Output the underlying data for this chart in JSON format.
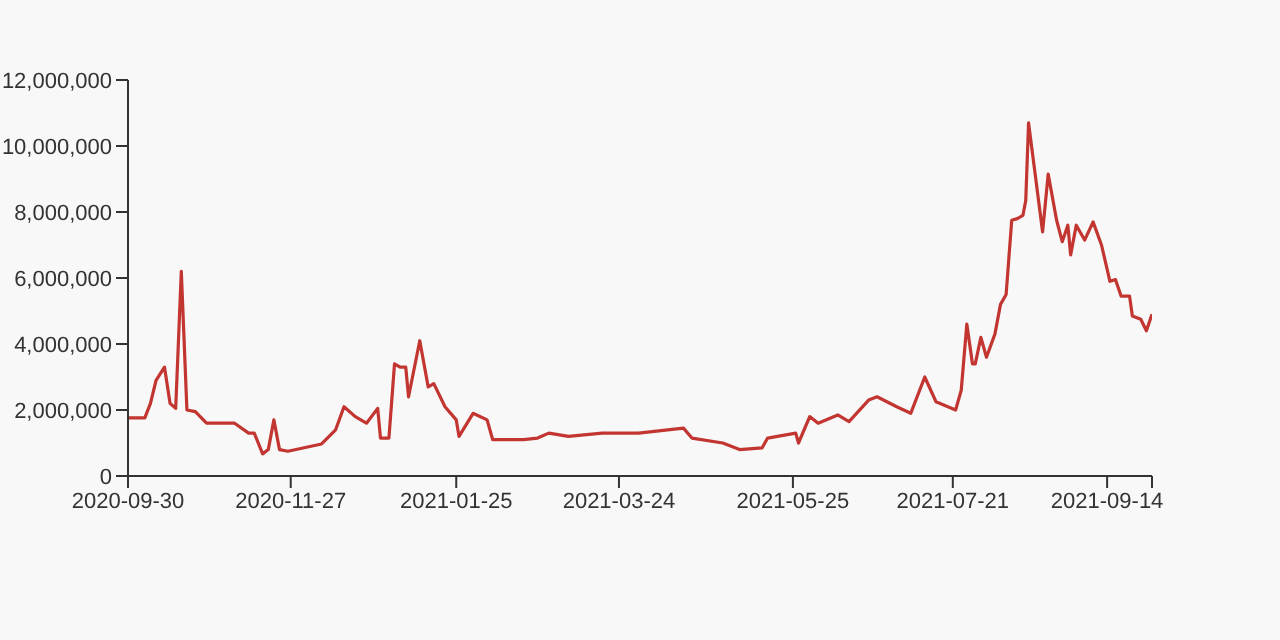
{
  "chart_data": {
    "type": "line",
    "marker": "none",
    "grid": false,
    "legend": false,
    "xlim": [
      "2020-09-30",
      "2021-09-30"
    ],
    "xticks": [
      "2020-09-30",
      "2020-11-27",
      "2021-01-25",
      "2021-03-24",
      "2021-05-25",
      "2021-07-21",
      "2021-09-14",
      {
        "value": "2021-09-30",
        "label": null
      }
    ],
    "ylim": [
      0,
      12000000
    ],
    "yticks": [
      0,
      {
        "value": 2000000,
        "label": "2,000,000"
      },
      {
        "value": 4000000,
        "label": "4,000,000"
      },
      {
        "value": 6000000,
        "label": "6,000,000"
      },
      {
        "value": 8000000,
        "label": "8,000,000"
      },
      {
        "value": 10000000,
        "label": "10,000,000"
      },
      {
        "value": 12000000,
        "label": "12,000,000"
      }
    ],
    "x": [
      "2020-09-30",
      "2020-10-06",
      "2020-10-08",
      "2020-10-10",
      "2020-10-13",
      "2020-10-15",
      "2020-10-17",
      "2020-10-19",
      "2020-10-21",
      "2020-10-24",
      "2020-10-28",
      "2020-11-07",
      "2020-11-12",
      "2020-11-14",
      "2020-11-17",
      "2020-11-19",
      "2020-11-21",
      "2020-11-23",
      "2020-11-26",
      "2020-12-08",
      "2020-12-13",
      "2020-12-16",
      "2020-12-20",
      "2020-12-24",
      "2020-12-28",
      "2020-12-29",
      "2021-01-01",
      "2021-01-03",
      "2021-01-05",
      "2021-01-07",
      "2021-01-08",
      "2021-01-12",
      "2021-01-15",
      "2021-01-17",
      "2021-01-21",
      "2021-01-25",
      "2021-01-26",
      "2021-01-31",
      "2021-02-05",
      "2021-02-07",
      "2021-02-18",
      "2021-02-23",
      "2021-02-27",
      "2021-03-06",
      "2021-03-18",
      "2021-03-31",
      "2021-04-16",
      "2021-04-19",
      "2021-04-30",
      "2021-05-06",
      "2021-05-14",
      "2021-05-16",
      "2021-05-26",
      "2021-05-27",
      "2021-05-31",
      "2021-06-03",
      "2021-06-10",
      "2021-06-14",
      "2021-06-21",
      "2021-06-24",
      "2021-07-01",
      "2021-07-06",
      "2021-07-11",
      "2021-07-15",
      "2021-07-22",
      "2021-07-24",
      "2021-07-26",
      "2021-07-28",
      "2021-07-29",
      "2021-07-31",
      "2021-08-02",
      "2021-08-05",
      "2021-08-07",
      "2021-08-09",
      "2021-08-11",
      "2021-08-13",
      "2021-08-15",
      "2021-08-16",
      "2021-08-17",
      "2021-08-22",
      "2021-08-24",
      "2021-08-27",
      "2021-08-29",
      "2021-08-31",
      "2021-09-01",
      "2021-09-03",
      "2021-09-06",
      "2021-09-09",
      "2021-09-12",
      "2021-09-15",
      "2021-09-17",
      "2021-09-19",
      "2021-09-22",
      "2021-09-23",
      "2021-09-26",
      "2021-09-28",
      "2021-09-30"
    ],
    "series": [
      {
        "color": "#c23531",
        "values": [
          1760000,
          1760000,
          2200000,
          2900000,
          3300000,
          2200000,
          2050000,
          6200000,
          2000000,
          1950000,
          1600000,
          1600000,
          1300000,
          1300000,
          670000,
          800000,
          1700000,
          800000,
          750000,
          970000,
          1400000,
          2100000,
          1800000,
          1600000,
          2050000,
          1150000,
          1150000,
          3400000,
          3300000,
          3300000,
          2400000,
          4100000,
          2700000,
          2800000,
          2100000,
          1700000,
          1200000,
          1900000,
          1700000,
          1100000,
          1100000,
          1150000,
          1300000,
          1200000,
          1300000,
          1300000,
          1450000,
          1150000,
          1000000,
          800000,
          850000,
          1150000,
          1300000,
          1000000,
          1800000,
          1600000,
          1850000,
          1650000,
          2300000,
          2400000,
          2100000,
          1900000,
          3000000,
          2250000,
          2000000,
          2600000,
          4600000,
          3400000,
          3400000,
          4200000,
          3600000,
          4300000,
          5200000,
          5500000,
          7750000,
          7800000,
          7900000,
          8350000,
          10700000,
          7400000,
          9150000,
          7750000,
          7100000,
          7600000,
          6700000,
          7600000,
          7150000,
          7700000,
          7000000,
          5900000,
          5950000,
          5450000,
          5450000,
          4850000,
          4750000,
          4400000,
          4900000
        ]
      }
    ]
  }
}
